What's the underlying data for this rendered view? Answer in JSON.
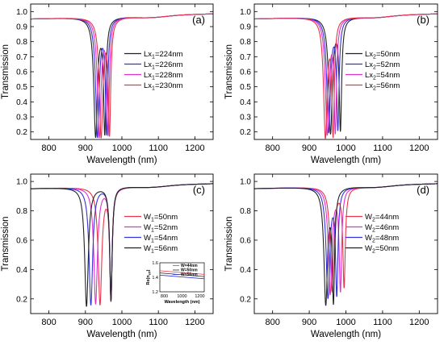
{
  "chart_data": [
    {
      "type": "line",
      "panel_label": "(a)",
      "xlabel": "Wavelength (nm)",
      "ylabel": "Transmission",
      "xlim": [
        750,
        1250
      ],
      "ylim": [
        0.15,
        1.05
      ],
      "xticks": [
        800,
        900,
        1000,
        1100,
        1200
      ],
      "yticks": [
        0.2,
        0.3,
        0.4,
        0.5,
        0.6,
        0.7,
        0.8,
        0.9,
        1.0
      ],
      "legend_position": "right",
      "legend_sub": "1",
      "series": [
        {
          "name_main": "Lx",
          "name_rest": "=224nm",
          "color": "#222222",
          "dip1": 928,
          "dip2": 953,
          "min": 0.18
        },
        {
          "name_main": "Lx",
          "name_rest": "=226nm",
          "color": "#3333dd",
          "dip1": 933,
          "dip2": 958,
          "min": 0.18
        },
        {
          "name_main": "Lx",
          "name_rest": "=228nm",
          "color": "#dd33cc",
          "dip1": 938,
          "dip2": 962,
          "min": 0.18
        },
        {
          "name_main": "Lx",
          "name_rest": "=230nm",
          "color": "#e8354a",
          "dip1": 943,
          "dip2": 966,
          "min": 0.18
        }
      ]
    },
    {
      "type": "line",
      "panel_label": "(b)",
      "xlabel": "Wavelength (nm)",
      "ylabel": "Transmission",
      "xlim": [
        750,
        1250
      ],
      "ylim": [
        0.15,
        1.05
      ],
      "xticks": [
        800,
        900,
        1000,
        1100,
        1200
      ],
      "yticks": [
        0.2,
        0.3,
        0.4,
        0.5,
        0.6,
        0.7,
        0.8,
        0.9,
        1.0
      ],
      "legend_position": "right",
      "legend_sub": "2",
      "series": [
        {
          "name_main": "Lx",
          "name_rest": "=50nm",
          "color": "#222222",
          "dip1": 958,
          "dip2": 985,
          "min": 0.2
        },
        {
          "name_main": "Lx",
          "name_rest": "=52nm",
          "color": "#3333dd",
          "dip1": 953,
          "dip2": 978,
          "min": 0.21
        },
        {
          "name_main": "Lx",
          "name_rest": "=54nm",
          "color": "#dd33cc",
          "dip1": 949,
          "dip2": 971,
          "min": 0.2
        },
        {
          "name_main": "Lx",
          "name_rest": "=56nm",
          "color": "#e8354a",
          "dip1": 944,
          "dip2": 965,
          "min": 0.18
        }
      ]
    },
    {
      "type": "line",
      "panel_label": "(c)",
      "xlabel": "Wavelength (nm)",
      "ylabel": "Transmission",
      "xlim": [
        750,
        1250
      ],
      "ylim": [
        0.1,
        1.05
      ],
      "xticks": [
        800,
        900,
        1000,
        1100,
        1200
      ],
      "yticks": [
        0.2,
        0.4,
        0.6,
        0.8,
        1.0
      ],
      "legend_position": "right",
      "legend_sub": "1",
      "series": [
        {
          "name_main": "W",
          "name_rest": "=50nm",
          "color": "#e8354a",
          "dip1": 940,
          "dip2": 970,
          "min": 0.17
        },
        {
          "name_main": "W",
          "name_rest": "=52nm",
          "color": "#dd33cc",
          "dip1": 928,
          "dip2": 970,
          "min": 0.17
        },
        {
          "name_main": "W",
          "name_rest": "=54nm",
          "color": "#3333dd",
          "dip1": 915,
          "dip2": 970,
          "min": 0.16
        },
        {
          "name_main": "W",
          "name_rest": "=56nm",
          "color": "#222222",
          "dip1": 903,
          "dip2": 970,
          "min": 0.15
        }
      ],
      "inset": {
        "xlabel": "Wavelength (nm)",
        "ylabel_main": "Re(n",
        "ylabel_sub": "eff",
        "ylabel_end": ")",
        "xlim": [
          750,
          1250
        ],
        "ylim": [
          1.2,
          1.6
        ],
        "xticks": [
          800,
          1000,
          1200
        ],
        "yticks": [
          1.2,
          1.4,
          1.6
        ],
        "series": [
          {
            "name": "W=44nm",
            "color": "#e8354a",
            "y0": 1.49,
            "y1": 1.44
          },
          {
            "name": "W=50nm",
            "color": "#222222",
            "y0": 1.46,
            "y1": 1.41
          },
          {
            "name": "W=56nm",
            "color": "#3333dd",
            "y0": 1.43,
            "y1": 1.38
          }
        ]
      }
    },
    {
      "type": "line",
      "panel_label": "(d)",
      "xlabel": "Wavelength (nm)",
      "ylabel": "Transmission",
      "xlim": [
        750,
        1250
      ],
      "ylim": [
        0.1,
        1.05
      ],
      "xticks": [
        800,
        900,
        1000,
        1100,
        1200
      ],
      "yticks": [
        0.2,
        0.4,
        0.6,
        0.8,
        1.0
      ],
      "legend_position": "right",
      "legend_sub": "2",
      "series": [
        {
          "name_main": "W",
          "name_rest": "=44nm",
          "color": "#e8354a",
          "dip1": 962,
          "dip2": 995,
          "min": 0.26
        },
        {
          "name_main": "W",
          "name_rest": "=46nm",
          "color": "#dd33cc",
          "dip1": 957,
          "dip2": 985,
          "min": 0.24
        },
        {
          "name_main": "W",
          "name_rest": "=48nm",
          "color": "#3333dd",
          "dip1": 951,
          "dip2": 975,
          "min": 0.22
        },
        {
          "name_main": "W",
          "name_rest": "=50nm",
          "color": "#222222",
          "dip1": 945,
          "dip2": 966,
          "min": 0.18
        }
      ]
    }
  ]
}
